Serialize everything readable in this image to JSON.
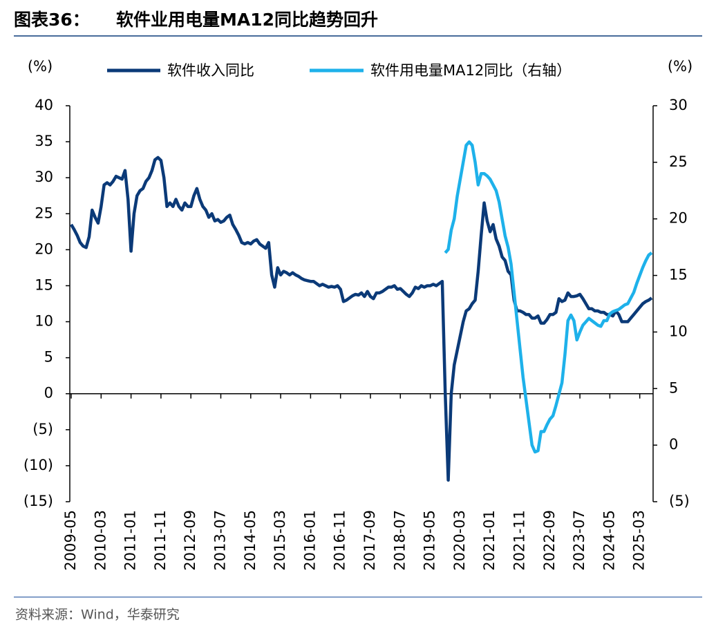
{
  "chart_data": {
    "type": "line",
    "figure_label": "图表36：",
    "title": "软件业用电量MA12同比趋势回升",
    "y_label": "(%)",
    "y2_label": "(%)",
    "source": "资料来源：Wind，华泰研究",
    "ylim": [
      -15,
      40
    ],
    "yticks": [
      40,
      35,
      30,
      25,
      20,
      15,
      10,
      5,
      0,
      {
        "value": -5,
        "label": "(5)"
      },
      {
        "value": -10,
        "label": "(10)"
      },
      {
        "value": -15,
        "label": "(15)"
      }
    ],
    "y2lim": [
      -5,
      30
    ],
    "y2ticks": [
      30,
      25,
      20,
      15,
      10,
      5,
      0,
      {
        "value": -5,
        "label": "(5)"
      }
    ],
    "categories": [
      "2009-05",
      null,
      null,
      null,
      null,
      null,
      null,
      null,
      null,
      null,
      "2010-03",
      null,
      null,
      null,
      null,
      null,
      null,
      null,
      null,
      null,
      "2011-01",
      null,
      null,
      null,
      null,
      null,
      null,
      null,
      null,
      null,
      "2011-11",
      null,
      null,
      null,
      null,
      null,
      null,
      null,
      null,
      null,
      "2012-09",
      null,
      null,
      null,
      null,
      null,
      null,
      null,
      null,
      null,
      "2013-07",
      null,
      null,
      null,
      null,
      null,
      null,
      null,
      null,
      null,
      "2014-05",
      null,
      null,
      null,
      null,
      null,
      null,
      null,
      null,
      null,
      "2015-03",
      null,
      null,
      null,
      null,
      null,
      null,
      null,
      null,
      null,
      "2016-01",
      null,
      null,
      null,
      null,
      null,
      null,
      null,
      null,
      null,
      "2016-11",
      null,
      null,
      null,
      null,
      null,
      null,
      null,
      null,
      null,
      "2017-09",
      null,
      null,
      null,
      null,
      null,
      null,
      null,
      null,
      null,
      "2018-07",
      null,
      null,
      null,
      null,
      null,
      null,
      null,
      null,
      null,
      "2019-05",
      null,
      null,
      null,
      null,
      null,
      null,
      null,
      null,
      null,
      "2020-03",
      null,
      null,
      null,
      null,
      null,
      null,
      null,
      null,
      null,
      "2021-01",
      null,
      null,
      null,
      null,
      null,
      null,
      null,
      null,
      null,
      "2021-11",
      null,
      null,
      null,
      null,
      null,
      null,
      null,
      null,
      null,
      "2022-09",
      null,
      null,
      null,
      null,
      null,
      null,
      null,
      null,
      null,
      "2023-07",
      null,
      null,
      null,
      null,
      null,
      null,
      null,
      null,
      null,
      "2024-05",
      null,
      null,
      null,
      null,
      null,
      null,
      null,
      null,
      null,
      "2025-03",
      null,
      null,
      null,
      null
    ],
    "series": [
      {
        "name": "软件收入同比",
        "color": "#0b3a78",
        "values": [
          23.5,
          22.8,
          22,
          21,
          20.5,
          20.3,
          21.8,
          25.5,
          24.5,
          23.7,
          26,
          29,
          29.3,
          29,
          29.5,
          30.2,
          30,
          29.8,
          31,
          27,
          19.8,
          25,
          27.5,
          28.2,
          28.5,
          29.5,
          30,
          31,
          32.5,
          32.8,
          32.4,
          30,
          26,
          26.5,
          26,
          27,
          26,
          25.5,
          26.5,
          26,
          26,
          27.5,
          28.5,
          27,
          26,
          25.5,
          24.5,
          25,
          24,
          24.2,
          23.8,
          24,
          24.5,
          24.8,
          23.5,
          22.8,
          22,
          21,
          20.8,
          21,
          20.8,
          21.2,
          21.4,
          20.8,
          20.5,
          20.2,
          21,
          16.5,
          14.8,
          17.5,
          16.5,
          17,
          16.8,
          16.5,
          16.8,
          16.5,
          16.3,
          16,
          15.8,
          15.7,
          15.6,
          15.6,
          15.3,
          15,
          15.2,
          15,
          14.8,
          14.9,
          14.8,
          15,
          14.5,
          12.8,
          13,
          13.3,
          13.6,
          13.8,
          13.7,
          14,
          13.5,
          14.2,
          13.5,
          13.2,
          14,
          14,
          14.2,
          14.5,
          14.8,
          14.8,
          15,
          14.5,
          14.6,
          14.2,
          13.8,
          13.5,
          14,
          14.8,
          14.6,
          15,
          14.8,
          15,
          15,
          15.2,
          15,
          15.3,
          15.6,
          0,
          -12,
          0,
          4,
          6,
          8,
          10,
          11.5,
          11.8,
          12.5,
          13,
          17,
          22,
          26.5,
          24,
          22.5,
          23.5,
          21.5,
          20.5,
          19,
          18.5,
          17,
          16.5,
          13,
          11.5,
          11.5,
          11.3,
          11,
          11,
          10.5,
          10.5,
          10.8,
          9.8,
          9.8,
          10.3,
          11,
          11,
          11.3,
          13.2,
          12.8,
          13,
          14,
          13.5,
          13.5,
          13.6,
          13.8,
          13.2,
          12.5,
          11.8,
          11.8,
          11.5,
          11.5,
          11.3,
          11.3,
          11,
          11,
          10.8,
          11.5,
          11,
          10,
          10,
          10,
          10.5,
          11,
          11.5,
          12,
          12.5,
          12.8,
          13,
          13.3
        ]
      },
      {
        "name": "软件用电量MA12同比（右轴）",
        "color": "#1eb1ea",
        "axis": "y2",
        "values": [
          null,
          null,
          null,
          null,
          null,
          null,
          null,
          null,
          null,
          null,
          null,
          null,
          null,
          null,
          null,
          null,
          null,
          null,
          null,
          null,
          null,
          null,
          null,
          null,
          null,
          null,
          null,
          null,
          null,
          null,
          null,
          null,
          null,
          null,
          null,
          null,
          null,
          null,
          null,
          null,
          null,
          null,
          null,
          null,
          null,
          null,
          null,
          null,
          null,
          null,
          null,
          null,
          null,
          null,
          null,
          null,
          null,
          null,
          null,
          null,
          null,
          null,
          null,
          null,
          null,
          null,
          null,
          null,
          null,
          null,
          null,
          null,
          null,
          null,
          null,
          null,
          null,
          null,
          null,
          null,
          null,
          null,
          null,
          null,
          null,
          null,
          null,
          null,
          null,
          null,
          null,
          null,
          null,
          null,
          null,
          null,
          null,
          null,
          null,
          null,
          null,
          null,
          null,
          null,
          null,
          null,
          null,
          null,
          null,
          null,
          null,
          null,
          null,
          null,
          null,
          null,
          null,
          null,
          null,
          null,
          null,
          null,
          null,
          null,
          null,
          17,
          17.3,
          19,
          20,
          22,
          23.5,
          25,
          26.5,
          26.8,
          26.5,
          25,
          23,
          24,
          24,
          23.8,
          23.5,
          23,
          22.5,
          21.5,
          20,
          18.5,
          17.5,
          16,
          13.5,
          11,
          8.5,
          6,
          4,
          2,
          0,
          -0.6,
          -0.5,
          1.2,
          1.2,
          1.8,
          2.3,
          2.6,
          3.5,
          4.5,
          5.5,
          8,
          11,
          11.5,
          11,
          9.3,
          10,
          10.6,
          10.9,
          11.2,
          11,
          10.8,
          10.6,
          10.5,
          11,
          11,
          11.6,
          11.8,
          11.9,
          12,
          12.2,
          12.4,
          12.5,
          13,
          13.5,
          14.3,
          15,
          15.7,
          16.3,
          16.8,
          17
        ]
      }
    ]
  }
}
